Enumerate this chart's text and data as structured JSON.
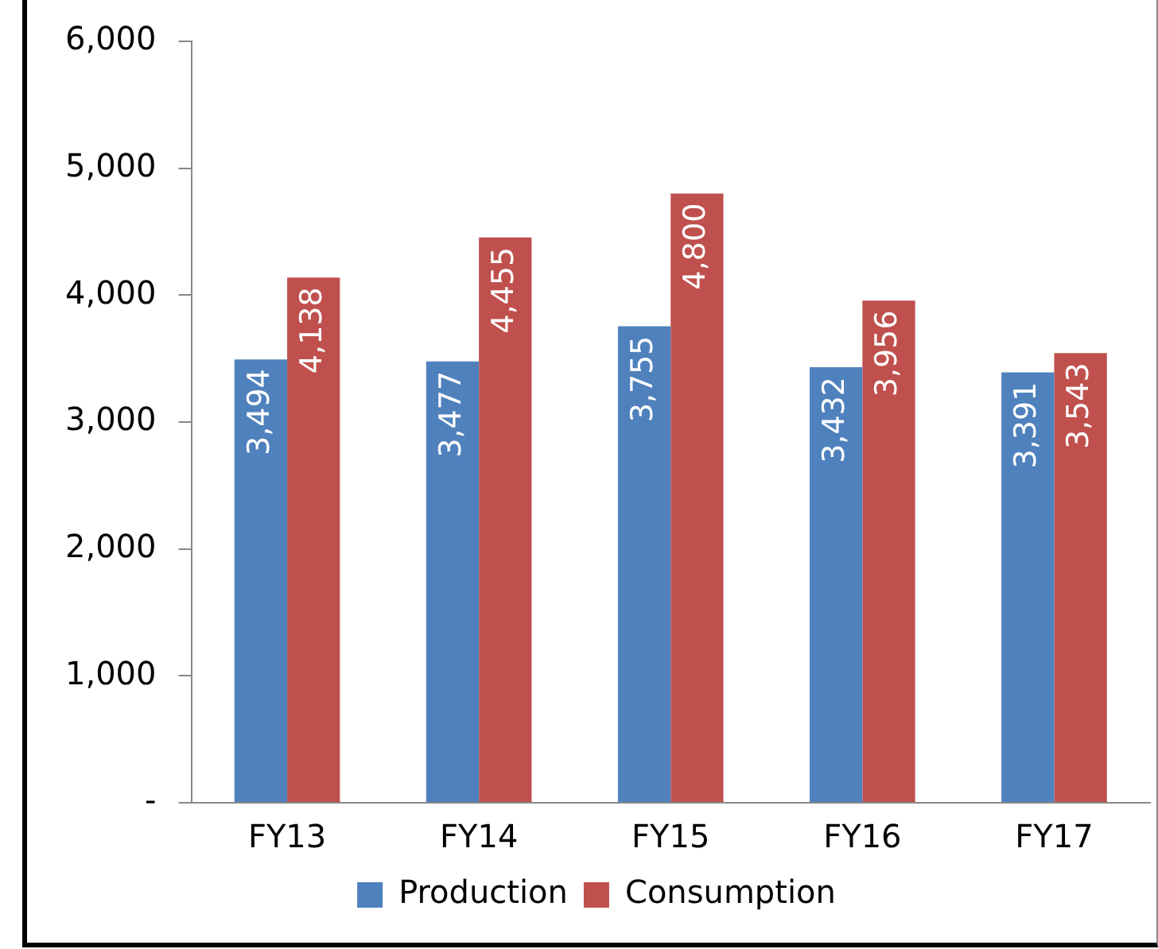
{
  "chart_data": {
    "type": "bar",
    "categories": [
      "FY13",
      "FY14",
      "FY15",
      "FY16",
      "FY17"
    ],
    "series": [
      {
        "name": "Production",
        "color": "#4f81bd",
        "values": [
          3494,
          3477,
          3755,
          3432,
          3391
        ],
        "value_labels": [
          "3,494",
          "3,477",
          "3,755",
          "3,432",
          "3,391"
        ]
      },
      {
        "name": "Consumption",
        "color": "#c0504d",
        "values": [
          4138,
          4455,
          4800,
          3956,
          3543
        ],
        "value_labels": [
          "4,138",
          "4,455",
          "4,800",
          "3,956",
          "3,543"
        ]
      }
    ],
    "ylim": [
      0,
      6000
    ],
    "yticks": [
      {
        "value": 0,
        "label": "-"
      },
      {
        "value": 1000,
        "label": "1,000"
      },
      {
        "value": 2000,
        "label": "2,000"
      },
      {
        "value": 3000,
        "label": "3,000"
      },
      {
        "value": 4000,
        "label": "4,000"
      },
      {
        "value": 5000,
        "label": "5,000"
      },
      {
        "value": 6000,
        "label": "6,000"
      }
    ],
    "grid": false,
    "legend": "bottom"
  }
}
